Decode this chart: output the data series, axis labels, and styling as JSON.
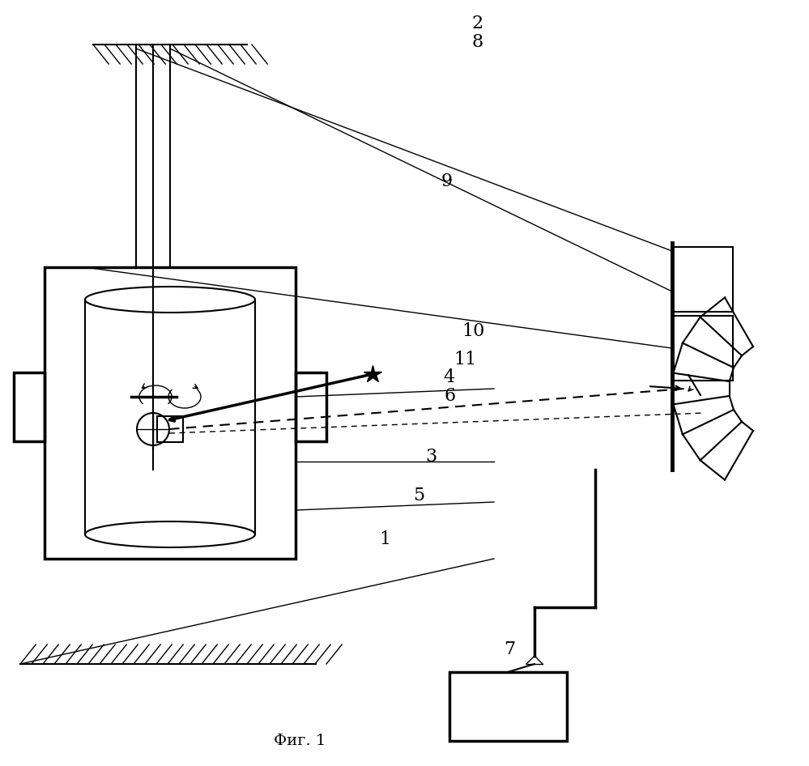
{
  "title": "Фиг. 1",
  "bg_color": "#ffffff",
  "line_color": "#000000",
  "fig_width": 9.99,
  "fig_height": 9.46
}
